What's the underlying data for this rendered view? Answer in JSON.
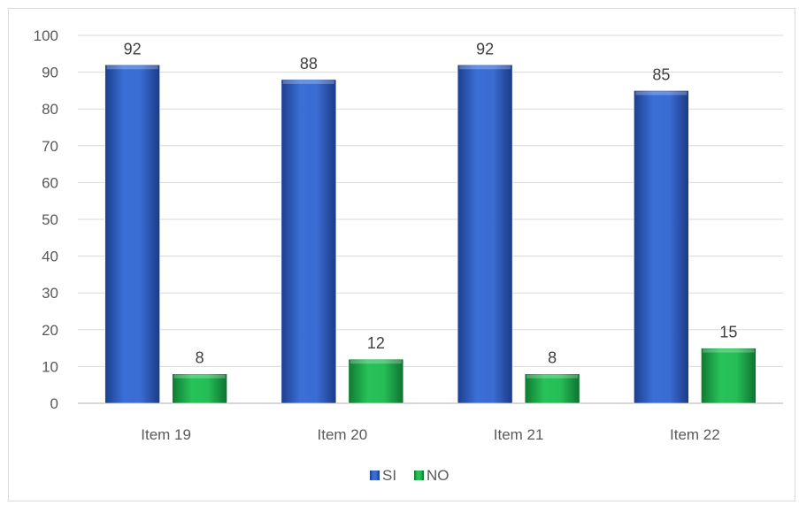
{
  "chart_data": {
    "type": "bar",
    "categories": [
      "Item 19",
      "Item 20",
      "Item 21",
      "Item 22"
    ],
    "series": [
      {
        "name": "SI",
        "values": [
          92,
          88,
          92,
          85
        ],
        "color": "#2e5fc4"
      },
      {
        "name": "NO",
        "values": [
          8,
          12,
          8,
          15
        ],
        "color": "#1fa84a"
      }
    ],
    "ylim": [
      0,
      100
    ],
    "yticks": [
      "0",
      "10",
      "20",
      "30",
      "40",
      "50",
      "60",
      "70",
      "80",
      "90",
      "100"
    ],
    "grid": true,
    "legend_position": "bottom",
    "data_labels": true
  }
}
